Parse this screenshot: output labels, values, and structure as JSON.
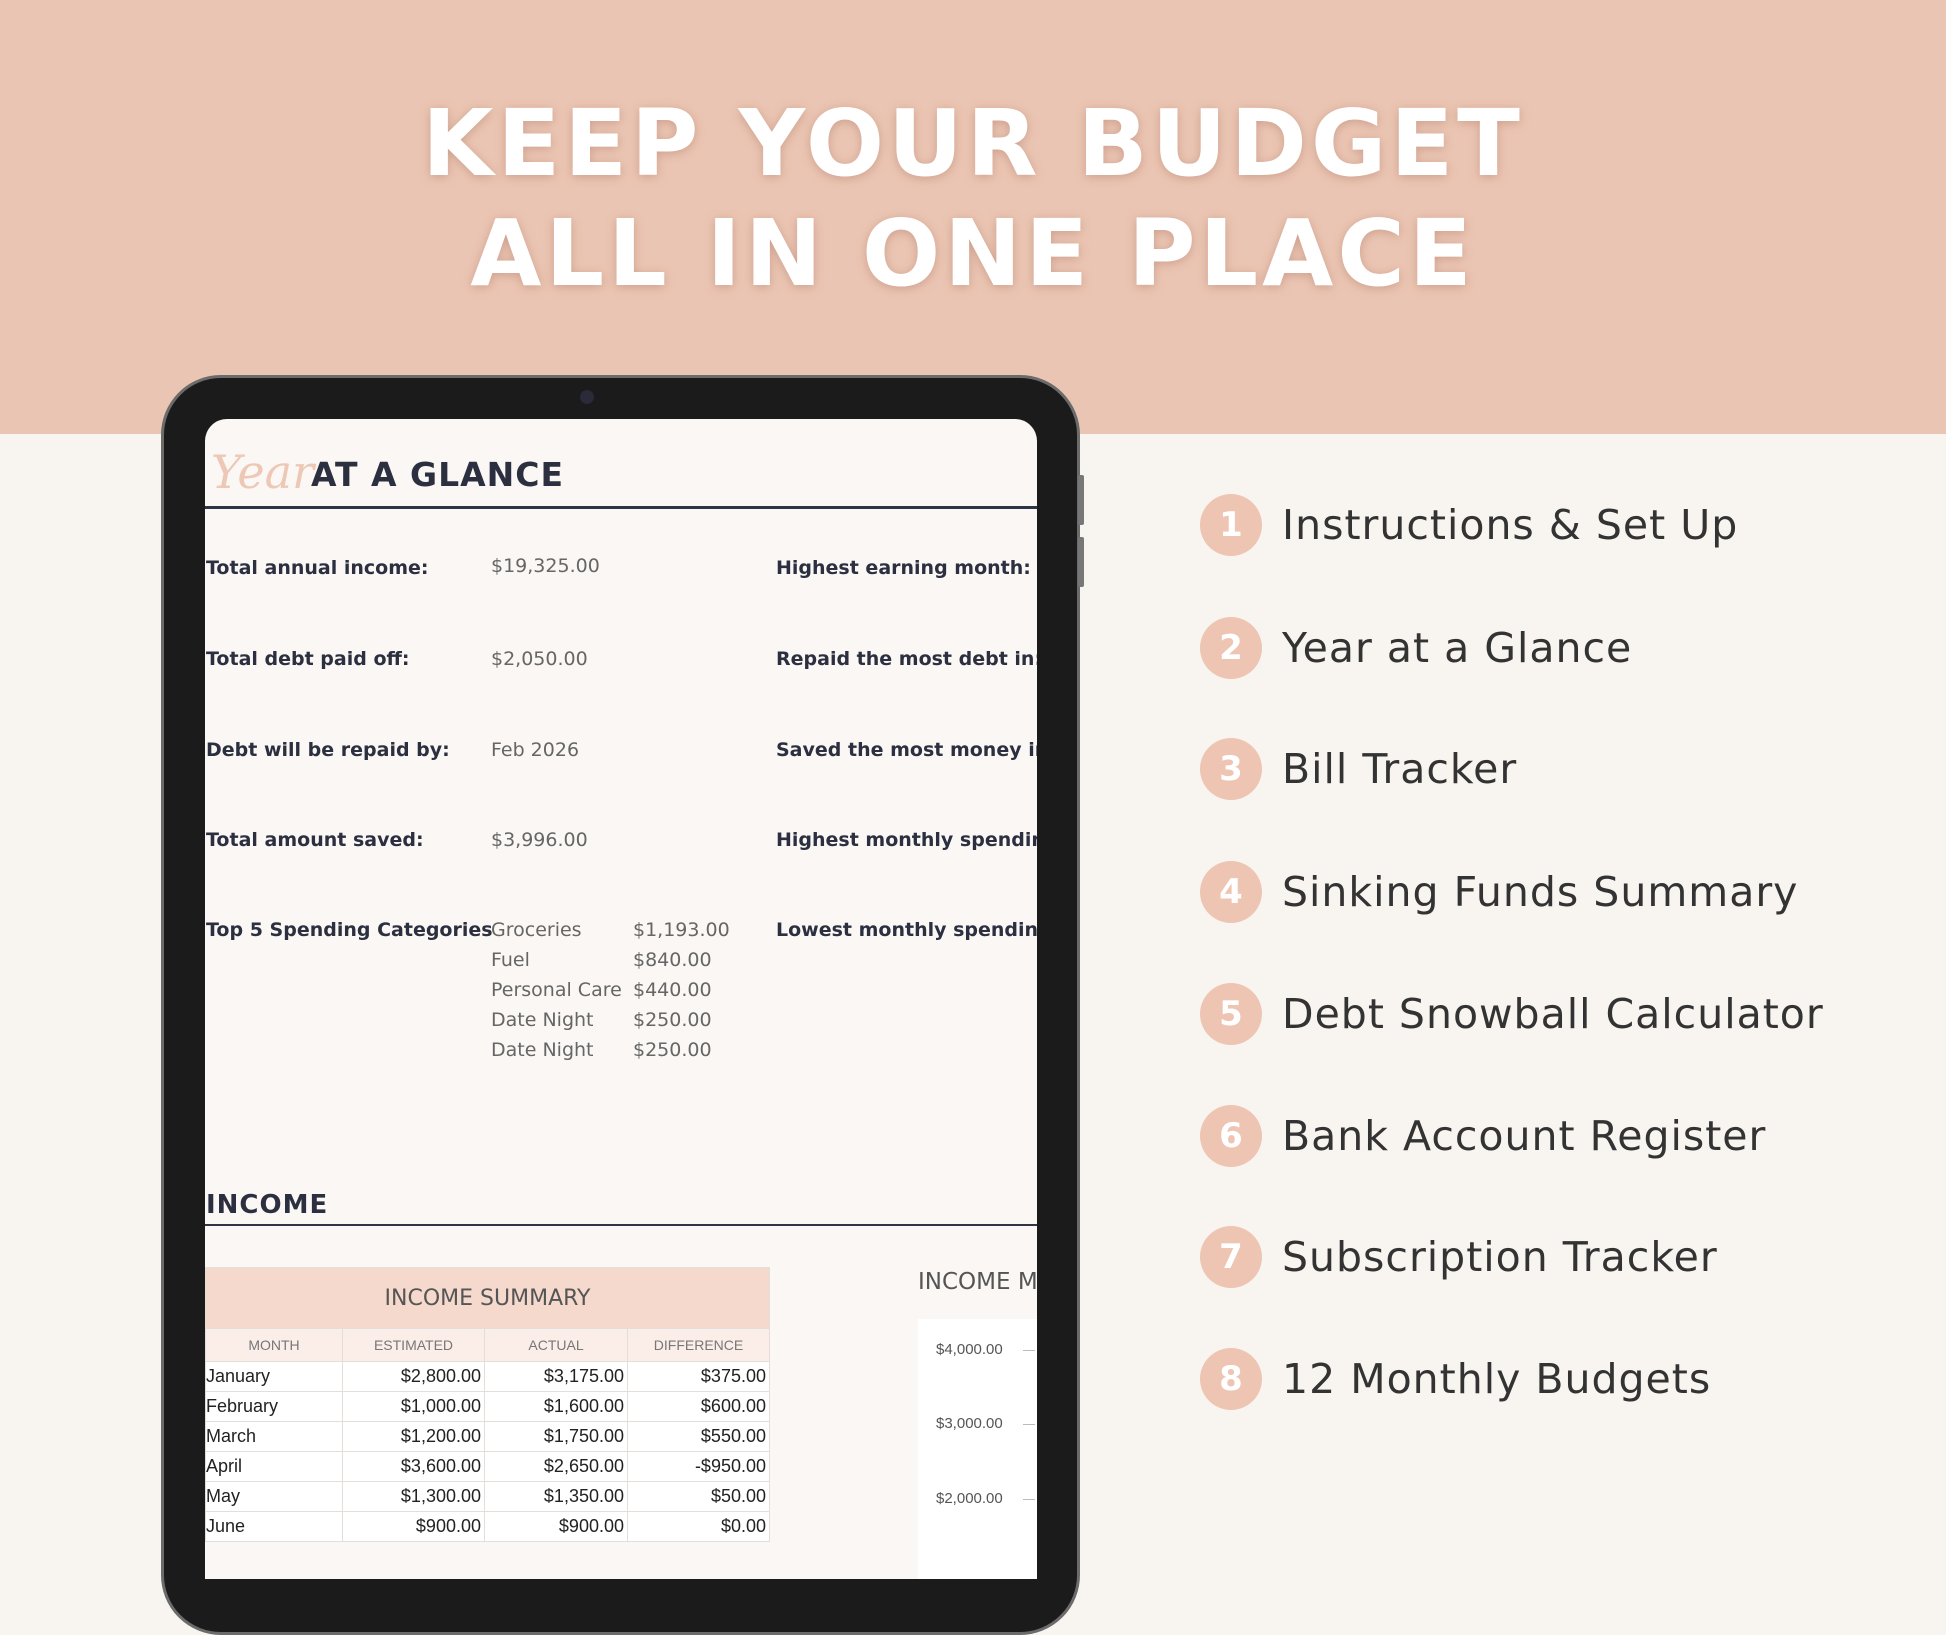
{
  "headline": {
    "line1": "KEEP YOUR BUDGET",
    "line2": "ALL IN ONE PLACE"
  },
  "colors": {
    "band": "#ebc5b3",
    "accent": "#eec5b3",
    "dark": "#2b2f3f"
  },
  "screen": {
    "title_script": "Year",
    "title": "AT A GLANCE",
    "stats": [
      {
        "label": "Total annual income:",
        "value": "$19,325.00"
      },
      {
        "label": "Total debt paid off:",
        "value": "$2,050.00"
      },
      {
        "label": "Debt will be repaid by:",
        "value": "Feb 2026"
      },
      {
        "label": "Total amount saved:",
        "value": "$3,996.00"
      }
    ],
    "right_labels": [
      "Highest earning month:",
      "Repaid the most debt in:",
      "Saved the most money in:",
      "Highest monthly spending",
      "Lowest monthly spending:"
    ],
    "top5_label": "Top 5 Spending Categories",
    "top5": [
      {
        "name": "Groceries",
        "amount": "$1,193.00"
      },
      {
        "name": "Fuel",
        "amount": "$840.00"
      },
      {
        "name": "Personal Care",
        "amount": "$440.00"
      },
      {
        "name": "Date Night",
        "amount": "$250.00"
      },
      {
        "name": "Date Night",
        "amount": "$250.00"
      }
    ],
    "income_heading": "INCOME",
    "income_table": {
      "title": "INCOME SUMMARY",
      "headers": [
        "MONTH",
        "ESTIMATED",
        "ACTUAL",
        "DIFFERENCE"
      ],
      "rows": [
        [
          "January",
          "$2,800.00",
          "$3,175.00",
          "$375.00"
        ],
        [
          "February",
          "$1,000.00",
          "$1,600.00",
          "$600.00"
        ],
        [
          "March",
          "$1,200.00",
          "$1,750.00",
          "$550.00"
        ],
        [
          "April",
          "$3,600.00",
          "$2,650.00",
          "-$950.00"
        ],
        [
          "May",
          "$1,300.00",
          "$1,350.00",
          "$50.00"
        ],
        [
          "June",
          "$900.00",
          "$900.00",
          "$0.00"
        ]
      ]
    },
    "chart": {
      "title": "INCOME M",
      "ticks": [
        "$4,000.00",
        "$3,000.00",
        "$2,000.00"
      ]
    }
  },
  "features": [
    {
      "n": "1",
      "label": "Instructions & Set Up"
    },
    {
      "n": "2",
      "label": "Year at a Glance"
    },
    {
      "n": "3",
      "label": "Bill Tracker"
    },
    {
      "n": "4",
      "label": "Sinking Funds Summary"
    },
    {
      "n": "5",
      "label": "Debt Snowball Calculator"
    },
    {
      "n": "6",
      "label": "Bank Account Register"
    },
    {
      "n": "7",
      "label": "Subscription Tracker"
    },
    {
      "n": "8",
      "label": "12 Monthly Budgets"
    }
  ]
}
